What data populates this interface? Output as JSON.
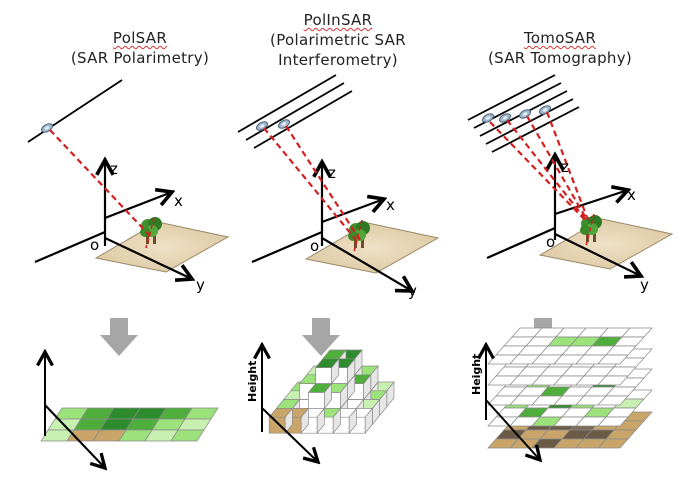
{
  "panels": [
    {
      "title_line1": "PolSAR",
      "title_line2": "(SAR Polarimetry)",
      "title_line3": ""
    },
    {
      "title_line1": "PolInSAR",
      "title_line2": "(Polarimetric SAR",
      "title_line3": "Interferometry)"
    },
    {
      "title_line1": "TomoSAR",
      "title_line2": "(SAR Tomography)",
      "title_line3": ""
    }
  ],
  "axes": {
    "z": "z",
    "x": "x",
    "y": "y",
    "origin": "o"
  },
  "height_label": "Height",
  "colors": {
    "dark_green": "#2e8b2e",
    "mid_green": "#4fae3b",
    "light_green": "#9be27a",
    "pale_green": "#c8f0b0",
    "tan": "#c9a56a",
    "dark_brown": "#6b5a45",
    "arrow_gray": "#a6a6a6",
    "ray_red": "#d41f1f"
  }
}
